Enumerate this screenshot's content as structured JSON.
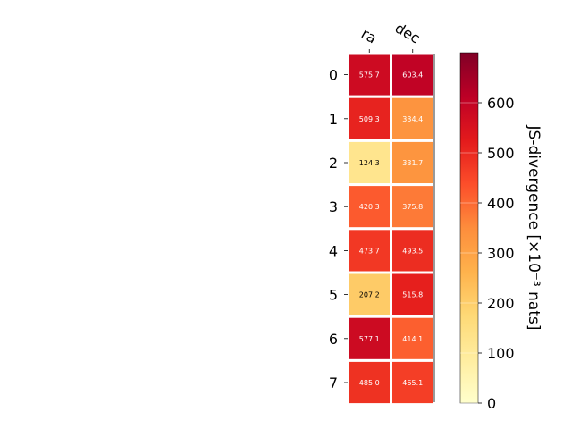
{
  "chart_data": {
    "type": "heatmap",
    "title": "",
    "x_categories": [
      "ra",
      "dec"
    ],
    "y_categories": [
      "0",
      "1",
      "2",
      "3",
      "4",
      "5",
      "6",
      "7"
    ],
    "values": [
      [
        575.7,
        603.4
      ],
      [
        509.3,
        334.4
      ],
      [
        124.3,
        331.7
      ],
      [
        420.3,
        375.8
      ],
      [
        473.7,
        493.5
      ],
      [
        207.2,
        515.8
      ],
      [
        577.1,
        414.1
      ],
      [
        485.0,
        465.1
      ]
    ],
    "colorbar": {
      "label": "JS-divergence [×10⁻³ nats]",
      "range": [
        0,
        700
      ],
      "ticks": [
        0,
        100,
        200,
        300,
        400,
        500,
        600
      ],
      "colormap": "YlOrRd"
    },
    "cell_label_format": "one decimal",
    "colors": {
      "text_light": "#ffffff",
      "text_dark": "#000000",
      "cell_border": "#ffffff"
    }
  }
}
